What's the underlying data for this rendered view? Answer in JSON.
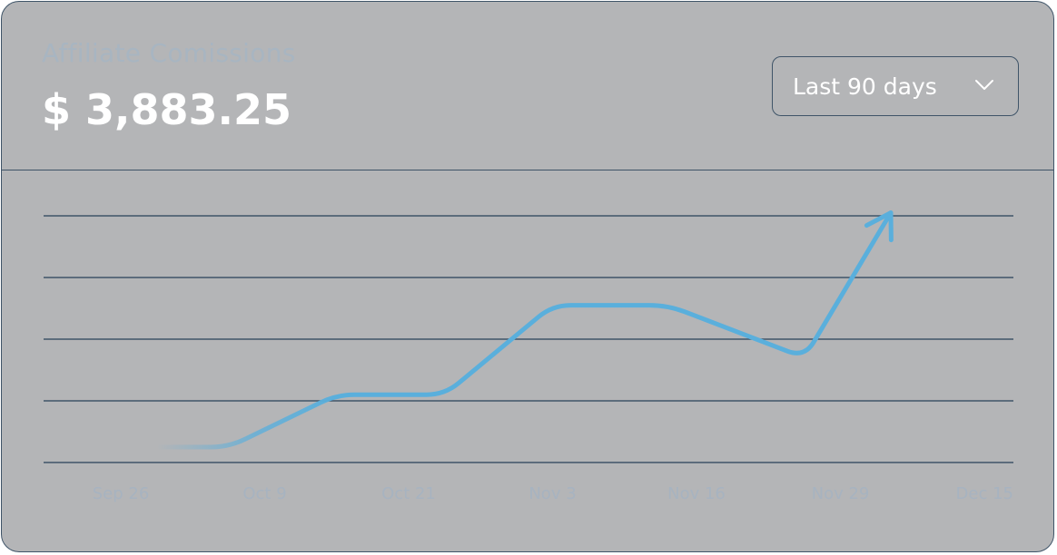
{
  "card": {
    "title": "Affiliate Comissions",
    "amount": "$ 3,883.25"
  },
  "range_select": {
    "label": "Last 90 days",
    "icon": "chevron-down-icon"
  },
  "colors": {
    "card_background": "#b4b5b7",
    "border": "#3f5468",
    "line": "#5aafdc",
    "muted_text": "#a8b5c1",
    "value_text": "#ffffff"
  },
  "chart_data": {
    "type": "line",
    "x_tick_labels": [
      "Sep 26",
      "Oct 9",
      "Oct 21",
      "Nov 3",
      "Nov 16",
      "Nov 29",
      "Dec 15"
    ],
    "x": [
      0.25,
      0.75,
      1.5,
      2.25,
      3.0,
      3.8,
      4.75,
      5.35
    ],
    "values": [
      0.25,
      0.25,
      1.1,
      1.1,
      2.55,
      2.55,
      1.7,
      4.05
    ],
    "end_marker": "arrow",
    "ylim": [
      0,
      4
    ],
    "grid_lines_y": [
      0,
      1,
      2,
      3,
      4
    ],
    "grid": true,
    "legend": false,
    "xlabel": "",
    "ylabel": ""
  }
}
